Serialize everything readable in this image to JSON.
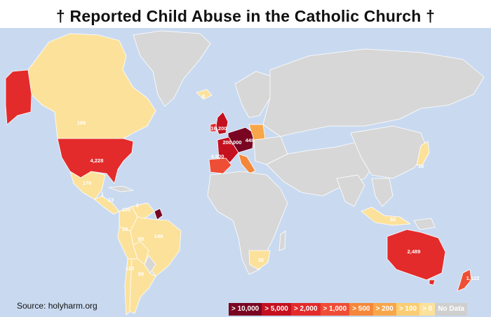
{
  "title": "† Reported Child Abuse in the Catholic Church †",
  "source": "Source: holyharm.org",
  "colors": {
    "water": "#c9daf0",
    "no_data": "#d7d7d7",
    "gt0": "#fce19a",
    "gt100": "#fbcd73",
    "gt200": "#f8a64a",
    "gt500": "#f5873a",
    "gt1000": "#ee4e35",
    "gt2000": "#e32b2b",
    "gt5000": "#c4101f",
    "gt10000": "#7a0522"
  },
  "legend": [
    {
      "label": "> 10,000",
      "color": "#7a0522"
    },
    {
      "label": "> 5,000",
      "color": "#c4101f"
    },
    {
      "label": "> 2,000",
      "color": "#e32b2b"
    },
    {
      "label": "> 1,000",
      "color": "#ee4e35"
    },
    {
      "label": "> 500",
      "color": "#f5873a"
    },
    {
      "label": "> 200",
      "color": "#f8a64a"
    },
    {
      "label": "> 100",
      "color": "#fbcd73"
    },
    {
      "label": "> 0",
      "color": "#fce19a"
    },
    {
      "label": "No Data",
      "color": "#cfcfcf"
    }
  ],
  "labels": {
    "canada": "106",
    "usa": "4,228",
    "mexico": "170",
    "iceland": "8",
    "uk": "16,200",
    "germany": "200,000",
    "poland": "448",
    "spain": "4,500",
    "japan": "16",
    "colombia": "100",
    "venezuela": "2",
    "brazil": "148",
    "peru": "19",
    "bolivia": "85",
    "chile": "123",
    "argentina": "89",
    "central_america_1": "1",
    "central_america_2": "13",
    "south_africa": "35",
    "philippines": "50",
    "australia": "2,489",
    "new_zealand": "1,122"
  }
}
